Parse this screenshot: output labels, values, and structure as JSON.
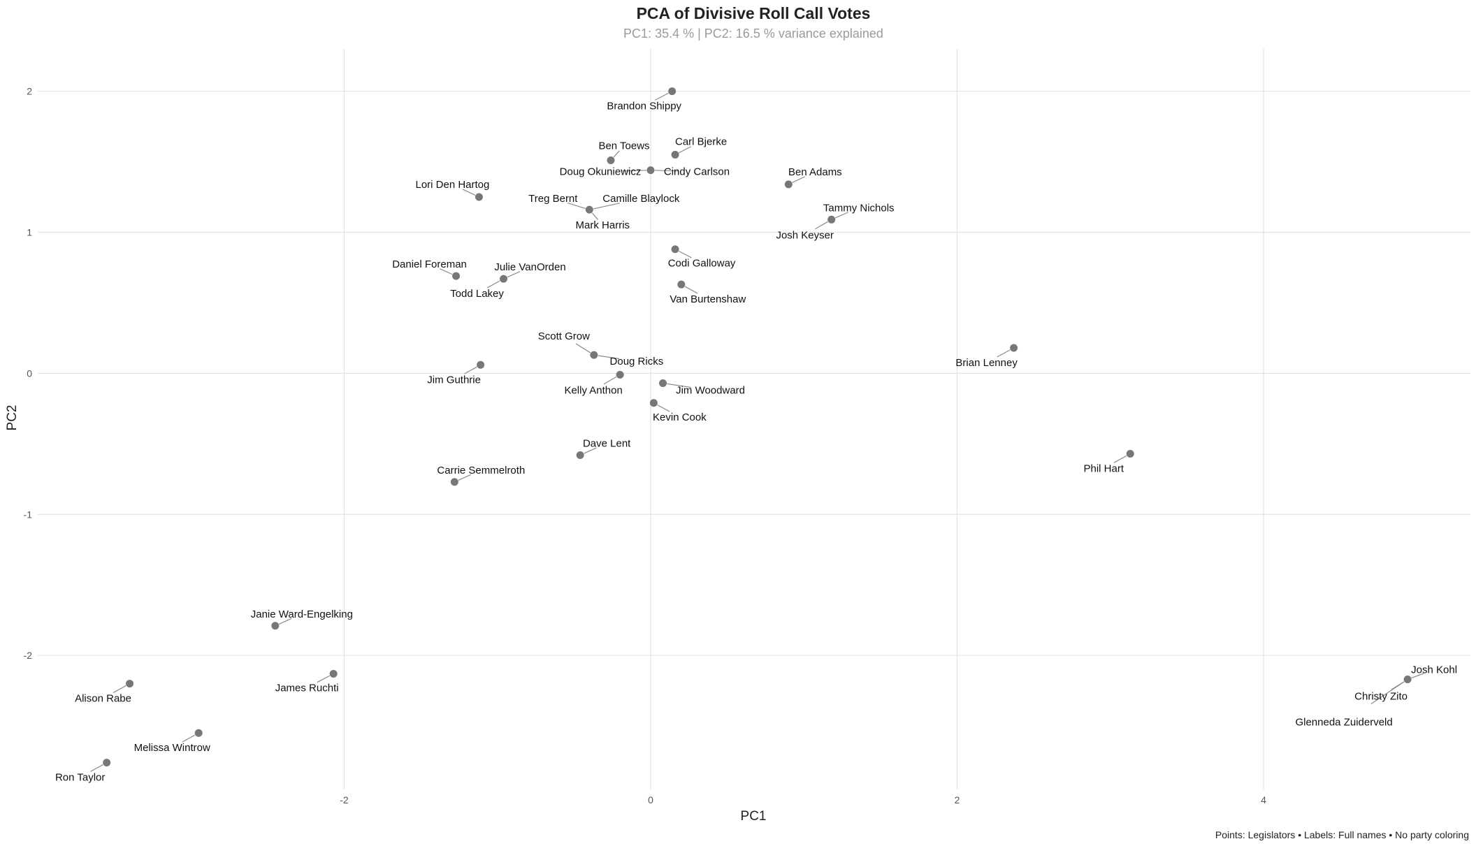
{
  "chart_data": {
    "type": "scatter",
    "title": "PCA of Divisive Roll Call Votes",
    "subtitle": "PC1: 35.4 % | PC2: 16.5 % variance explained",
    "xlabel": "PC1",
    "ylabel": "PC2",
    "caption": "Points: Legislators • Labels: Full names • No party coloring",
    "xlim": [
      -4.0,
      5.35
    ],
    "ylim": [
      -2.95,
      2.3
    ],
    "x_ticks": [
      -2,
      0,
      2,
      4
    ],
    "y_ticks": [
      -2,
      -1,
      0,
      1,
      2
    ],
    "x_tick_labels": [
      "-2",
      "0",
      "2",
      "4"
    ],
    "y_tick_labels": [
      "-2",
      "-1",
      "0",
      "1",
      "2"
    ],
    "grid": true,
    "legend": "none",
    "point_color": "#777777",
    "points": [
      {
        "name": "Brandon Shippy",
        "x": 0.14,
        "y": 2.0
      },
      {
        "name": "Ben Toews",
        "x": -0.26,
        "y": 1.51
      },
      {
        "name": "Carl Bjerke",
        "x": 0.16,
        "y": 1.55
      },
      {
        "name": "Doug Okuniewicz",
        "x": 0.0,
        "y": 1.44
      },
      {
        "name": "Cindy Carlson",
        "x": 0.0,
        "y": 1.44
      },
      {
        "name": "Ben Adams",
        "x": 0.9,
        "y": 1.34
      },
      {
        "name": "Lori Den Hartog",
        "x": -1.12,
        "y": 1.25
      },
      {
        "name": "Treg Bernt",
        "x": -0.4,
        "y": 1.16
      },
      {
        "name": "Camille Blaylock",
        "x": -0.4,
        "y": 1.16
      },
      {
        "name": "Mark Harris",
        "x": -0.4,
        "y": 1.16
      },
      {
        "name": "Tammy Nichols",
        "x": 1.18,
        "y": 1.09
      },
      {
        "name": "Josh Keyser",
        "x": 1.18,
        "y": 1.09
      },
      {
        "name": "Codi Galloway",
        "x": 0.16,
        "y": 0.88
      },
      {
        "name": "Daniel Foreman",
        "x": -1.27,
        "y": 0.69
      },
      {
        "name": "Julie VanOrden",
        "x": -0.96,
        "y": 0.67
      },
      {
        "name": "Todd Lakey",
        "x": -0.96,
        "y": 0.67
      },
      {
        "name": "Van Burtenshaw",
        "x": 0.2,
        "y": 0.63
      },
      {
        "name": "Scott Grow",
        "x": -0.37,
        "y": 0.13
      },
      {
        "name": "Doug Ricks",
        "x": -0.37,
        "y": 0.13
      },
      {
        "name": "Brian Lenney",
        "x": 2.37,
        "y": 0.18
      },
      {
        "name": "Jim Guthrie",
        "x": -1.11,
        "y": 0.06
      },
      {
        "name": "Kelly Anthon",
        "x": -0.2,
        "y": -0.01
      },
      {
        "name": "Jim Woodward",
        "x": 0.08,
        "y": -0.07
      },
      {
        "name": "Kevin Cook",
        "x": 0.02,
        "y": -0.21
      },
      {
        "name": "Dave Lent",
        "x": -0.46,
        "y": -0.58
      },
      {
        "name": "Phil Hart",
        "x": 3.13,
        "y": -0.57
      },
      {
        "name": "Carrie Semmelroth",
        "x": -1.28,
        "y": -0.77
      },
      {
        "name": "Janie Ward-Engelking",
        "x": -2.45,
        "y": -1.79
      },
      {
        "name": "James Ruchti",
        "x": -2.07,
        "y": -2.13
      },
      {
        "name": "Alison Rabe",
        "x": -3.4,
        "y": -2.2
      },
      {
        "name": "Melissa Wintrow",
        "x": -2.95,
        "y": -2.55
      },
      {
        "name": "Ron Taylor",
        "x": -3.55,
        "y": -2.76
      },
      {
        "name": "Josh Kohl",
        "x": 4.94,
        "y": -2.17
      },
      {
        "name": "Christy Zito",
        "x": 4.94,
        "y": -2.17
      },
      {
        "name": "Glenneda Zuiderveld",
        "x": 4.94,
        "y": -2.17
      }
    ]
  }
}
